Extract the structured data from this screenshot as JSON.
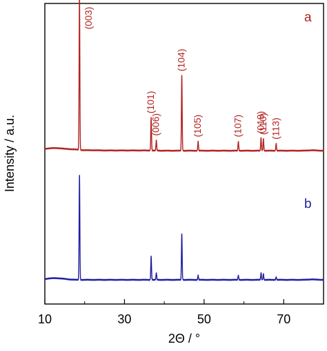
{
  "chart_data": {
    "type": "line",
    "xlabel": "2Θ / °",
    "ylabel": "Intensity / a.u.",
    "xlim": [
      10,
      80
    ],
    "xticks": [
      10,
      30,
      50,
      70
    ],
    "y_tick_labels": false,
    "grid": false,
    "series": [
      {
        "name": "a",
        "color": "#b22222",
        "baseline": [
          [
            10,
            0.43
          ],
          [
            11,
            0.45
          ],
          [
            12,
            0.46
          ],
          [
            13,
            0.46
          ],
          [
            14,
            0.45
          ],
          [
            15,
            0.43
          ],
          [
            16,
            0.42
          ],
          [
            17,
            0.41
          ],
          [
            18,
            0.4
          ],
          [
            19,
            0.38
          ],
          [
            20,
            0.37
          ],
          [
            22,
            0.37
          ],
          [
            25,
            0.36
          ],
          [
            30,
            0.36
          ],
          [
            35,
            0.36
          ],
          [
            40,
            0.35
          ],
          [
            45,
            0.35
          ],
          [
            50,
            0.35
          ],
          [
            55,
            0.35
          ],
          [
            60,
            0.35
          ],
          [
            65,
            0.35
          ],
          [
            70,
            0.35
          ],
          [
            75,
            0.35
          ],
          [
            77,
            0.37
          ],
          [
            78,
            0.36
          ],
          [
            80,
            0.35
          ]
        ],
        "peaks": [
          {
            "x": 18.7,
            "height": 6.6,
            "label": "(003)"
          },
          {
            "x": 36.7,
            "height": 1.4,
            "label": "(101)"
          },
          {
            "x": 38.0,
            "height": 0.45,
            "label": "(006)"
          },
          {
            "x": 44.4,
            "height": 3.2,
            "label": "(104)"
          },
          {
            "x": 48.5,
            "height": 0.4,
            "label": "(105)"
          },
          {
            "x": 58.6,
            "height": 0.4,
            "label": "(107)"
          },
          {
            "x": 64.3,
            "height": 0.55,
            "label": "(018)"
          },
          {
            "x": 64.9,
            "height": 0.5,
            "label": "(110)"
          },
          {
            "x": 68.1,
            "height": 0.3,
            "label": "(113)"
          }
        ]
      },
      {
        "name": "b",
        "color": "#1f1fa0",
        "baseline": [
          [
            10,
            0.03
          ],
          [
            11,
            0.06
          ],
          [
            12,
            0.07
          ],
          [
            13,
            0.07
          ],
          [
            14,
            0.06
          ],
          [
            15,
            0.04
          ],
          [
            16,
            0.02
          ],
          [
            17,
            0.01
          ],
          [
            18,
            0.0
          ],
          [
            20,
            0.0
          ],
          [
            25,
            0.0
          ],
          [
            30,
            0.0
          ],
          [
            35,
            0.0
          ],
          [
            40,
            0.0
          ],
          [
            45,
            0.0
          ],
          [
            50,
            0.0
          ],
          [
            55,
            0.0
          ],
          [
            60,
            0.0
          ],
          [
            65,
            0.0
          ],
          [
            70,
            0.0
          ],
          [
            75,
            0.0
          ],
          [
            77,
            0.02
          ],
          [
            78,
            0.01
          ],
          [
            80,
            0.0
          ]
        ],
        "peaks": [
          {
            "x": 18.7,
            "height": 4.45
          },
          {
            "x": 36.7,
            "height": 1.0
          },
          {
            "x": 38.0,
            "height": 0.3
          },
          {
            "x": 44.4,
            "height": 1.95
          },
          {
            "x": 48.5,
            "height": 0.2
          },
          {
            "x": 58.6,
            "height": 0.2
          },
          {
            "x": 64.3,
            "height": 0.3
          },
          {
            "x": 64.9,
            "height": 0.25
          },
          {
            "x": 68.1,
            "height": 0.12
          }
        ]
      }
    ]
  }
}
